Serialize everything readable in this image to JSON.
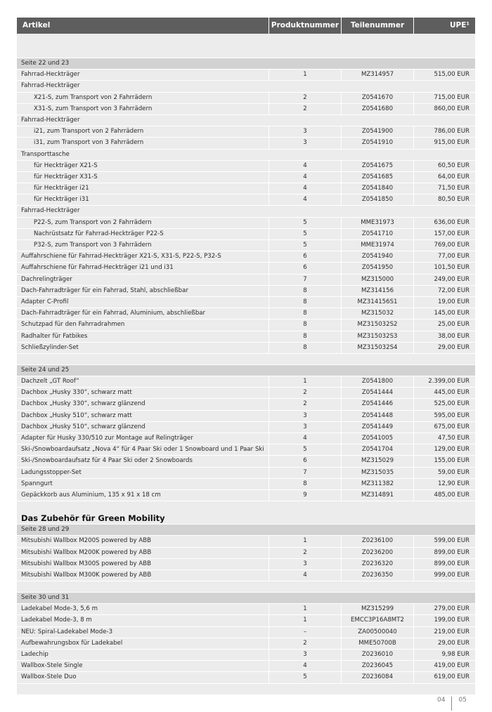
{
  "header": {
    "artikel": "Artikel",
    "produktnummer": "Produktnummer",
    "teilenummer": "Teilenummer",
    "upe": "UPE¹"
  },
  "sections": [
    {
      "title": "Seite 22 und 23",
      "rows": [
        {
          "a": "Fahrrad-Heckträger",
          "p": "1",
          "t": "MZ314957",
          "u": "515,00 EUR"
        },
        {
          "a": "Fahrrad-Heckträger",
          "grp": true
        },
        {
          "a": "X21-S, zum Transport von 2 Fahrrädern",
          "ind": true,
          "p": "2",
          "t": "Z0541670",
          "u": "715,00 EUR"
        },
        {
          "a": "X31-S, zum Transport von 3 Fahrrädern",
          "ind": true,
          "p": "2",
          "t": "Z0541680",
          "u": "860,00 EUR"
        },
        {
          "a": "Fahrrad-Heckträger",
          "grp": true
        },
        {
          "a": "i21, zum Transport von 2 Fahrrädern",
          "ind": true,
          "p": "3",
          "t": "Z0541900",
          "u": "786,00 EUR"
        },
        {
          "a": "i31, zum Transport von 3 Fahrrädern",
          "ind": true,
          "p": "3",
          "t": "Z0541910",
          "u": "915,00 EUR"
        },
        {
          "a": "Transporttasche",
          "grp": true
        },
        {
          "a": "für Heckträger X21-S",
          "ind": true,
          "p": "4",
          "t": "Z0541675",
          "u": "60,50 EUR"
        },
        {
          "a": "für Heckträger X31-S",
          "ind": true,
          "p": "4",
          "t": "Z0541685",
          "u": "64,00 EUR"
        },
        {
          "a": "für Heckträger i21",
          "ind": true,
          "p": "4",
          "t": "Z0541840",
          "u": "71,50 EUR"
        },
        {
          "a": "für Heckträger i31",
          "ind": true,
          "p": "4",
          "t": "Z0541850",
          "u": "80,50 EUR"
        },
        {
          "a": "Fahrrad-Heckträger",
          "grp": true
        },
        {
          "a": "P22-S, zum Transport von 2 Fahrrädern",
          "ind": true,
          "p": "5",
          "t": "MME31973",
          "u": "636,00 EUR"
        },
        {
          "a": "Nachrüstsatz für Fahrrad-Heckträger P22-S",
          "ind": true,
          "p": "5",
          "t": "Z0541710",
          "u": "157,00 EUR"
        },
        {
          "a": "P32-S, zum Transport von 3 Fahrrädern",
          "ind": true,
          "p": "5",
          "t": "MME31974",
          "u": "769,00 EUR"
        },
        {
          "a": "Auffahrschiene für Fahrrad-Heckträger X21-S, X31-S, P22-S, P32-S",
          "p": "6",
          "t": "Z0541940",
          "u": "77,00 EUR"
        },
        {
          "a": "Auffahrschiene für Fahrrad-Heckträger i21 und i31",
          "p": "6",
          "t": "Z0541950",
          "u": "101,50 EUR"
        },
        {
          "a": "Dachrelingträger",
          "p": "7",
          "t": "MZ315000",
          "u": "249,00 EUR"
        },
        {
          "a": "Dach-Fahrradträger für ein Fahrrad, Stahl, abschließbar",
          "p": "8",
          "t": "MZ314156",
          "u": "72,00 EUR"
        },
        {
          "a": "Adapter C-Profil",
          "p": "8",
          "t": "MZ314156S1",
          "u": "19,00 EUR"
        },
        {
          "a": "Dach-Fahrradträger für ein Fahrrad, Aluminium, abschließbar",
          "p": "8",
          "t": "MZ315032",
          "u": "145,00 EUR"
        },
        {
          "a": "Schutzpad für den Fahrradrahmen",
          "p": "8",
          "t": "MZ315032S2",
          "u": "25,00 EUR"
        },
        {
          "a": "Radhalter für Fatbikes",
          "p": "8",
          "t": "MZ315032S3",
          "u": "38,00 EUR"
        },
        {
          "a": "Schließzylinder-Set",
          "p": "8",
          "t": "MZ315032S4",
          "u": "29,00 EUR"
        }
      ]
    },
    {
      "title": "Seite 24 und 25",
      "rows": [
        {
          "a": "Dachzelt „GT Roof“",
          "p": "1",
          "t": "Z0541800",
          "u": "2.399,00 EUR"
        },
        {
          "a": "Dachbox „Husky 330“, schwarz matt",
          "p": "2",
          "t": "Z0541444",
          "u": "445,00 EUR"
        },
        {
          "a": "Dachbox „Husky 330“, schwarz glänzend",
          "p": "2",
          "t": "Z0541446",
          "u": "525,00 EUR"
        },
        {
          "a": "Dachbox „Husky 510“, schwarz matt",
          "p": "3",
          "t": "Z0541448",
          "u": "595,00 EUR"
        },
        {
          "a": "Dachbox „Husky 510“, schwarz glänzend",
          "p": "3",
          "t": "Z0541449",
          "u": "675,00 EUR"
        },
        {
          "a": "Adapter für Husky 330/510 zur Montage auf Relingträger",
          "p": "4",
          "t": "Z0541005",
          "u": "47,50 EUR"
        },
        {
          "a": "Ski-/Snowboardaufsatz „Nova 4“ für 4 Paar Ski oder 1 Snowboard und 1 Paar Ski",
          "p": "5",
          "t": "Z0541704",
          "u": "129,00 EUR"
        },
        {
          "a": "Ski-/Snowboardaufsatz für 4 Paar Ski oder 2 Snowboards",
          "p": "6",
          "t": "MZ315029",
          "u": "155,00 EUR"
        },
        {
          "a": "Ladungsstopper-Set",
          "p": "7",
          "t": "MZ315035",
          "u": "59,00 EUR"
        },
        {
          "a": "Spanngurt",
          "p": "8",
          "t": "MZ311382",
          "u": "12,90 EUR"
        },
        {
          "a": "Gepäckkorb aus Aluminium, 135 x 91 x 18 cm",
          "p": "9",
          "t": "MZ314891",
          "u": "485,00 EUR"
        }
      ]
    },
    {
      "heading": "Das Zubehör für Green Mobility",
      "title": "Seite 28 und 29",
      "rows": [
        {
          "a": "Mitsubishi Wallbox M200S powered by ABB",
          "p": "1",
          "t": "Z0236100",
          "u": "599,00 EUR"
        },
        {
          "a": "Mitsubishi Wallbox M200K powered by ABB",
          "p": "2",
          "t": "Z0236200",
          "u": "899,00 EUR"
        },
        {
          "a": "Mitsubishi Wallbox M300S powered by ABB",
          "p": "3",
          "t": "Z0236320",
          "u": "899,00 EUR"
        },
        {
          "a": "Mitsubishi Wallbox M300K powered by ABB",
          "p": "4",
          "t": "Z0236350",
          "u": "999,00 EUR"
        }
      ]
    },
    {
      "title": "Seite 30 und 31",
      "rows": [
        {
          "a": "Ladekabel Mode-3, 5,6 m",
          "p": "1",
          "t": "MZ315299",
          "u": "279,00 EUR"
        },
        {
          "a": "Ladekabel Mode-3, 8 m",
          "p": "1",
          "t": "EMCC3P16A8MT2",
          "u": "199,00 EUR"
        },
        {
          "a": "NEU: Spiral-Ladekabel Mode-3",
          "p": "–",
          "t": "ZA00500040",
          "u": "219,00 EUR"
        },
        {
          "a": "Aufbewahrungsbox für Ladekabel",
          "p": "2",
          "t": "MME50700B",
          "u": "29,00 EUR"
        },
        {
          "a": "Ladechip",
          "p": "3",
          "t": "Z0236010",
          "u": "9,98 EUR"
        },
        {
          "a": "Wallbox-Stele Single",
          "p": "4",
          "t": "Z0236045",
          "u": "419,00 EUR"
        },
        {
          "a": "Wallbox-Stele Duo",
          "p": "5",
          "t": "Z0236084",
          "u": "619,00 EUR"
        }
      ]
    }
  ],
  "footer": {
    "page_left": "04",
    "page_right": "05"
  }
}
